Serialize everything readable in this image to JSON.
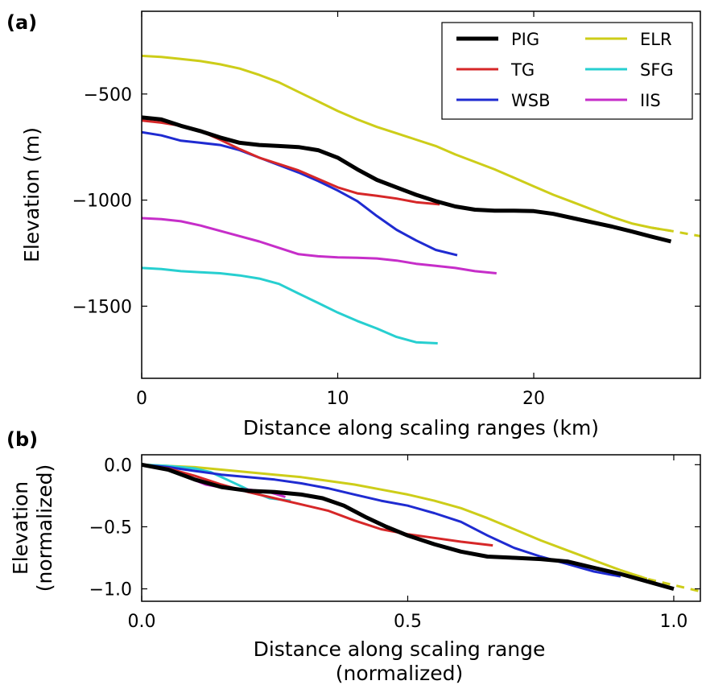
{
  "chart_data": [
    {
      "type": "line",
      "panel_label": "(a)",
      "xlabel": "Distance along scaling ranges (km)",
      "ylabel": "Elevation (m)",
      "xlim": [
        0,
        28.5
      ],
      "ylim": [
        -1840,
        -110
      ],
      "x_ticks": [
        0,
        10,
        20
      ],
      "x_tick_labels": [
        "0",
        "10",
        "20"
      ],
      "y_ticks": [
        -500,
        -1000,
        -1500
      ],
      "y_tick_labels": [
        "−500",
        "−1000",
        "−1500"
      ],
      "grid": false,
      "legend": {
        "placement": "top-right",
        "columns": 2
      },
      "series": [
        {
          "name": "PIG",
          "color": "#000000",
          "width": 5,
          "x": [
            0,
            1,
            2,
            3,
            4,
            5,
            6,
            7,
            8,
            9,
            10,
            11,
            12,
            13,
            14,
            15,
            16,
            17,
            18,
            19,
            20,
            21,
            22,
            23,
            24,
            25,
            26,
            27
          ],
          "y": [
            -610,
            -620,
            -650,
            -675,
            -705,
            -730,
            -740,
            -745,
            -750,
            -765,
            -800,
            -855,
            -905,
            -940,
            -975,
            -1005,
            -1030,
            -1045,
            -1050,
            -1050,
            -1052,
            -1065,
            -1085,
            -1105,
            -1125,
            -1148,
            -1172,
            -1195
          ]
        },
        {
          "name": "TG",
          "color": "#d62728",
          "width": 3,
          "x": [
            0,
            1,
            2,
            3,
            4,
            5,
            6,
            7,
            8,
            9,
            10,
            11,
            12,
            13,
            14,
            15.2
          ],
          "y": [
            -625,
            -635,
            -650,
            -675,
            -715,
            -760,
            -800,
            -830,
            -860,
            -900,
            -940,
            -968,
            -980,
            -993,
            -1010,
            -1020
          ]
        },
        {
          "name": "WSB",
          "color": "#1f2bd1",
          "width": 3,
          "x": [
            0,
            1,
            2,
            3,
            4,
            5,
            6,
            7,
            8,
            9,
            10,
            11,
            12,
            13,
            14,
            15,
            16.1
          ],
          "y": [
            -680,
            -695,
            -720,
            -730,
            -740,
            -765,
            -800,
            -835,
            -870,
            -910,
            -955,
            -1005,
            -1075,
            -1140,
            -1190,
            -1235,
            -1260
          ]
        },
        {
          "name": "ELR",
          "color": "#cdcd19",
          "width": 3,
          "dashed_tail": [
            27,
            28.5
          ],
          "x": [
            0,
            1,
            2,
            3,
            4,
            5,
            6,
            7,
            8,
            9,
            10,
            11,
            12,
            13,
            14,
            15,
            16,
            17,
            18,
            19,
            20,
            21,
            22,
            23,
            24,
            25,
            26,
            27,
            28.5
          ],
          "y": [
            -320,
            -325,
            -335,
            -345,
            -360,
            -380,
            -410,
            -445,
            -490,
            -535,
            -580,
            -620,
            -655,
            -685,
            -715,
            -745,
            -785,
            -820,
            -855,
            -895,
            -935,
            -975,
            -1010,
            -1045,
            -1080,
            -1110,
            -1130,
            -1145,
            -1170
          ]
        },
        {
          "name": "SFG",
          "color": "#27cfd0",
          "width": 3,
          "x": [
            0,
            1,
            2,
            3,
            4,
            5,
            6,
            7,
            8,
            9,
            10,
            11,
            12,
            13,
            14,
            15.1
          ],
          "y": [
            -1320,
            -1325,
            -1335,
            -1340,
            -1345,
            -1355,
            -1370,
            -1395,
            -1440,
            -1485,
            -1530,
            -1570,
            -1605,
            -1645,
            -1670,
            -1675
          ]
        },
        {
          "name": "IIS",
          "color": "#c62ec9",
          "width": 3,
          "x": [
            0,
            1,
            2,
            3,
            4,
            5,
            6,
            7,
            8,
            9,
            10,
            11,
            12,
            13,
            14,
            15,
            16,
            17,
            18.1
          ],
          "y": [
            -1085,
            -1090,
            -1100,
            -1120,
            -1145,
            -1170,
            -1195,
            -1225,
            -1255,
            -1265,
            -1270,
            -1272,
            -1275,
            -1285,
            -1300,
            -1310,
            -1320,
            -1335,
            -1345
          ]
        }
      ]
    },
    {
      "type": "line",
      "panel_label": "(b)",
      "xlabel": "Distance along scaling range\n(normalized)",
      "ylabel": "Elevation\n(normalized)",
      "xlim": [
        0,
        1.05
      ],
      "ylim": [
        -1.1,
        0.08
      ],
      "x_ticks": [
        0,
        0.5,
        1.0
      ],
      "x_tick_labels": [
        "0.0",
        "0.5",
        "1.0"
      ],
      "y_ticks": [
        0,
        -0.5,
        -1.0
      ],
      "y_tick_labels": [
        "0.0",
        "−0.5",
        "−1.0"
      ],
      "grid": false,
      "series": [
        {
          "name": "PIG",
          "color": "#000000",
          "width": 5,
          "x": [
            0,
            0.05,
            0.1,
            0.15,
            0.2,
            0.25,
            0.3,
            0.34,
            0.38,
            0.42,
            0.46,
            0.5,
            0.55,
            0.6,
            0.65,
            0.7,
            0.75,
            0.8,
            0.85,
            0.9,
            0.95,
            1.0
          ],
          "y": [
            0,
            -0.04,
            -0.12,
            -0.18,
            -0.21,
            -0.22,
            -0.24,
            -0.27,
            -0.33,
            -0.42,
            -0.5,
            -0.57,
            -0.64,
            -0.7,
            -0.74,
            -0.75,
            -0.76,
            -0.78,
            -0.83,
            -0.88,
            -0.94,
            -1.0
          ]
        },
        {
          "name": "TG",
          "color": "#d62728",
          "width": 3,
          "x": [
            0,
            0.05,
            0.1,
            0.15,
            0.2,
            0.25,
            0.3,
            0.35,
            0.4,
            0.45,
            0.5,
            0.55,
            0.6,
            0.66
          ],
          "y": [
            0,
            -0.03,
            -0.09,
            -0.16,
            -0.22,
            -0.27,
            -0.32,
            -0.37,
            -0.45,
            -0.52,
            -0.56,
            -0.59,
            -0.62,
            -0.65
          ]
        },
        {
          "name": "WSB",
          "color": "#1f2bd1",
          "width": 3,
          "x": [
            0,
            0.05,
            0.1,
            0.15,
            0.2,
            0.25,
            0.3,
            0.35,
            0.4,
            0.45,
            0.5,
            0.55,
            0.6,
            0.65,
            0.7,
            0.75,
            0.8,
            0.85,
            0.9
          ],
          "y": [
            0,
            -0.02,
            -0.05,
            -0.08,
            -0.1,
            -0.12,
            -0.15,
            -0.19,
            -0.24,
            -0.29,
            -0.33,
            -0.39,
            -0.46,
            -0.57,
            -0.67,
            -0.74,
            -0.8,
            -0.86,
            -0.9
          ]
        },
        {
          "name": "ELR",
          "color": "#cdcd19",
          "width": 3,
          "dashed_tail": [
            0.95,
            1.05
          ],
          "x": [
            0,
            0.05,
            0.1,
            0.15,
            0.2,
            0.25,
            0.3,
            0.35,
            0.4,
            0.45,
            0.5,
            0.55,
            0.6,
            0.65,
            0.7,
            0.75,
            0.8,
            0.85,
            0.9,
            0.95,
            1.05
          ],
          "y": [
            0,
            -0.01,
            -0.02,
            -0.04,
            -0.06,
            -0.08,
            -0.1,
            -0.13,
            -0.16,
            -0.2,
            -0.24,
            -0.29,
            -0.35,
            -0.43,
            -0.52,
            -0.61,
            -0.69,
            -0.77,
            -0.85,
            -0.92,
            -1.02
          ]
        },
        {
          "name": "SFG",
          "color": "#27cfd0",
          "width": 3,
          "x": [
            0,
            0.05,
            0.1,
            0.13,
            0.16,
            0.2,
            0.24,
            0.28
          ],
          "y": [
            0,
            -0.01,
            -0.03,
            -0.06,
            -0.12,
            -0.2,
            -0.27,
            -0.29
          ]
        },
        {
          "name": "IIS",
          "color": "#c62ec9",
          "width": 3,
          "x": [
            0,
            0.04,
            0.08,
            0.12,
            0.16,
            0.2,
            0.24,
            0.27
          ],
          "y": [
            0,
            -0.03,
            -0.09,
            -0.16,
            -0.19,
            -0.2,
            -0.22,
            -0.26
          ]
        }
      ]
    }
  ]
}
